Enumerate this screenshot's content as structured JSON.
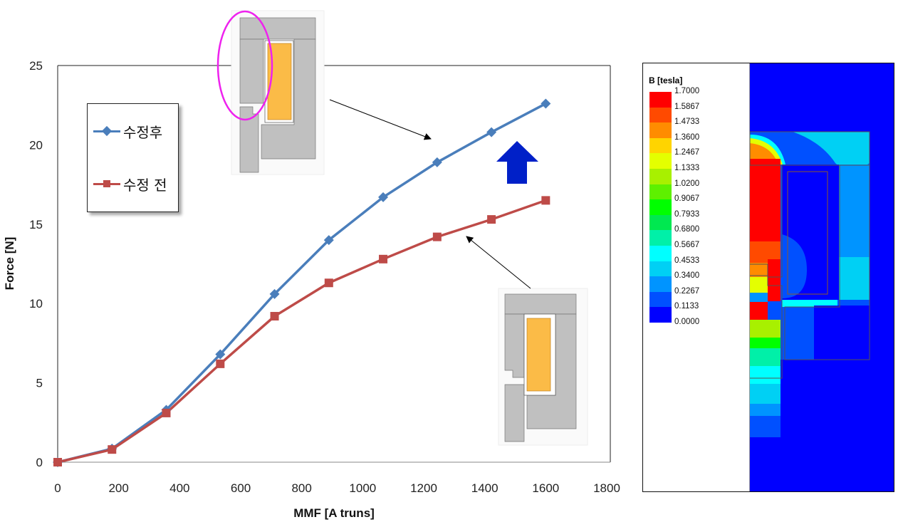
{
  "chart_data": {
    "type": "line",
    "title": "",
    "xlabel": "MMF [A truns]",
    "ylabel": "Force [N]",
    "xlim": [
      0,
      1800
    ],
    "ylim": [
      0,
      25
    ],
    "xticks": [
      0,
      200,
      400,
      600,
      800,
      1000,
      1200,
      1400,
      1600,
      1800
    ],
    "yticks": [
      0,
      5,
      10,
      15,
      20,
      25
    ],
    "grid": false,
    "legend_placement": "top-left",
    "x": [
      0,
      178,
      356,
      533,
      711,
      889,
      1067,
      1244,
      1422,
      1600
    ],
    "series": [
      {
        "name": "수정후",
        "color": "#4a7ebb",
        "marker": "diamond",
        "values": [
          0,
          0.85,
          3.3,
          6.8,
          10.6,
          14.0,
          16.7,
          18.9,
          20.8,
          22.6
        ]
      },
      {
        "name": "수정 전",
        "color": "#be4b48",
        "marker": "square",
        "values": [
          0,
          0.8,
          3.1,
          6.2,
          9.2,
          11.3,
          12.8,
          14.2,
          15.3,
          16.5
        ]
      }
    ]
  },
  "field_plot": {
    "colorbar_title": "B [tesla]",
    "levels": [
      "1.7000",
      "1.5867",
      "1.4733",
      "1.3600",
      "1.2467",
      "1.1333",
      "1.0200",
      "0.9067",
      "0.7933",
      "0.6800",
      "0.5667",
      "0.4533",
      "0.3400",
      "0.2267",
      "0.1133",
      "0.0000"
    ],
    "colors": [
      "#ff0000",
      "#ff4a00",
      "#ff8c00",
      "#ffd400",
      "#e4ff00",
      "#a8f000",
      "#5ef000",
      "#00ff00",
      "#00e850",
      "#00f0a8",
      "#00ffff",
      "#00d0f4",
      "#0094ff",
      "#0050ff",
      "#0000ff"
    ]
  }
}
